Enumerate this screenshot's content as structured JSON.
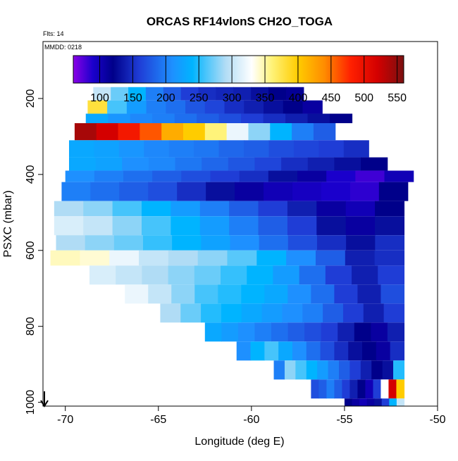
{
  "chart_data": {
    "type": "heatmap",
    "title": "ORCAS RF14vlonS CH2O_TOGA",
    "note_top": "Flts: 14",
    "note_panel": "MMDD: 0218",
    "xlabel": "Longitude (deg E)",
    "ylabel": "PSXC (mbar)",
    "xlim": [
      -71.2,
      -50
    ],
    "ylim": [
      1010,
      50
    ],
    "x_ticks": [
      -70,
      -65,
      -60,
      -55,
      -50
    ],
    "y_ticks": [
      200,
      400,
      600,
      800,
      1000
    ],
    "colorbar": {
      "range": [
        60,
        560
      ],
      "ticks": [
        100,
        150,
        200,
        250,
        300,
        350,
        400,
        450,
        500,
        550
      ],
      "stops": [
        {
          "v": 60,
          "c": "#8a00e6"
        },
        {
          "v": 90,
          "c": "#1a00cc"
        },
        {
          "v": 120,
          "c": "#00008a"
        },
        {
          "v": 160,
          "c": "#1f3dd6"
        },
        {
          "v": 210,
          "c": "#1e90ff"
        },
        {
          "v": 240,
          "c": "#00b4ff"
        },
        {
          "v": 290,
          "c": "#b0dcf5"
        },
        {
          "v": 330,
          "c": "#ffffff"
        },
        {
          "v": 360,
          "c": "#fff37a"
        },
        {
          "v": 400,
          "c": "#ffcc00"
        },
        {
          "v": 440,
          "c": "#ff8c00"
        },
        {
          "v": 480,
          "c": "#ff2000"
        },
        {
          "v": 520,
          "c": "#d40000"
        },
        {
          "v": 560,
          "c": "#7a1010"
        }
      ]
    },
    "bands": [
      {
        "p0": 170,
        "p1": 205,
        "x0": -68.5,
        "x1": -57.2,
        "vals": [
          300,
          270,
          240,
          200,
          180,
          160,
          150,
          145,
          140,
          130,
          120,
          115
        ]
      },
      {
        "p0": 205,
        "p1": 240,
        "x0": -68.8,
        "x1": -56.2,
        "vals": [
          380,
          260,
          220,
          200,
          190,
          175,
          165,
          150,
          140,
          130,
          120,
          110
        ]
      },
      {
        "p0": 240,
        "p1": 265,
        "x0": -68.9,
        "x1": -54.6,
        "vals": [
          230,
          215,
          205,
          200,
          190,
          180,
          170,
          160,
          150,
          140,
          130,
          120
        ]
      },
      {
        "p0": 265,
        "p1": 310,
        "x0": -69.5,
        "x1": -55.5,
        "vals": [
          540,
          520,
          490,
          460,
          420,
          400,
          360,
          320,
          280,
          240,
          200,
          180
        ]
      },
      {
        "p0": 310,
        "p1": 355,
        "x0": -69.8,
        "x1": -53.7,
        "vals": [
          230,
          225,
          215,
          205,
          200,
          195,
          185,
          180,
          170,
          165,
          160,
          150
        ]
      },
      {
        "p0": 355,
        "p1": 390,
        "x0": -69.8,
        "x1": -52.7,
        "vals": [
          230,
          225,
          210,
          205,
          195,
          185,
          175,
          165,
          150,
          140,
          130,
          120
        ]
      },
      {
        "p0": 390,
        "p1": 420,
        "x0": -70.0,
        "x1": -51.3,
        "vals": [
          210,
          200,
          190,
          180,
          170,
          160,
          150,
          130,
          110,
          90,
          80,
          100
        ]
      },
      {
        "p0": 420,
        "p1": 470,
        "x0": -70.2,
        "x1": -51.6,
        "vals": [
          200,
          190,
          180,
          170,
          150,
          130,
          110,
          100,
          95,
          90,
          85,
          120
        ]
      },
      {
        "p0": 470,
        "p1": 510,
        "x0": -70.6,
        "x1": -51.8,
        "vals": [
          290,
          280,
          260,
          240,
          220,
          200,
          180,
          160,
          140,
          110,
          100,
          120
        ]
      },
      {
        "p0": 510,
        "p1": 560,
        "x0": -70.6,
        "x1": -51.8,
        "vals": [
          310,
          300,
          280,
          260,
          240,
          220,
          200,
          180,
          160,
          130,
          110,
          130
        ]
      },
      {
        "p0": 560,
        "p1": 600,
        "x0": -70.5,
        "x1": -51.8,
        "vals": [
          290,
          280,
          270,
          255,
          240,
          225,
          210,
          190,
          170,
          150,
          130,
          150
        ]
      },
      {
        "p0": 600,
        "p1": 640,
        "x0": -70.8,
        "x1": -51.8,
        "vals": [
          345,
          340,
          320,
          300,
          290,
          280,
          265,
          240,
          210,
          180,
          140,
          150
        ]
      },
      {
        "p0": 640,
        "p1": 690,
        "x0": -68.7,
        "x1": -51.8,
        "vals": [
          310,
          300,
          290,
          280,
          270,
          255,
          240,
          220,
          190,
          160,
          140,
          160
        ]
      },
      {
        "p0": 690,
        "p1": 740,
        "x0": -66.8,
        "x1": -51.8,
        "vals": [
          320,
          300,
          280,
          260,
          250,
          240,
          230,
          210,
          190,
          160,
          140,
          170
        ]
      },
      {
        "p0": 740,
        "p1": 790,
        "x0": -64.9,
        "x1": -51.8,
        "vals": [
          290,
          270,
          250,
          240,
          230,
          220,
          210,
          200,
          180,
          160,
          140,
          160
        ]
      },
      {
        "p0": 790,
        "p1": 840,
        "x0": -62.5,
        "x1": -51.8,
        "vals": [
          230,
          220,
          210,
          200,
          190,
          180,
          170,
          160,
          140,
          120,
          110,
          140
        ]
      },
      {
        "p0": 840,
        "p1": 890,
        "x0": -60.8,
        "x1": -51.8,
        "vals": [
          210,
          240,
          260,
          230,
          210,
          190,
          170,
          150,
          130,
          120,
          110,
          150
        ]
      },
      {
        "p0": 890,
        "p1": 940,
        "x0": -58.8,
        "x1": -51.8,
        "vals": [
          200,
          280,
          260,
          240,
          220,
          200,
          180,
          160,
          140,
          120,
          130,
          250
        ]
      },
      {
        "p0": 940,
        "p1": 990,
        "x0": -56.8,
        "x1": -51.8,
        "vals": [
          170,
          180,
          200,
          180,
          160,
          140,
          120,
          100,
          160,
          330,
          520,
          400
        ]
      },
      {
        "p0": 990,
        "p1": 1010,
        "x0": -55.0,
        "x1": -51.8,
        "vals": [
          120,
          110,
          100,
          110,
          130,
          160,
          240,
          300
        ]
      }
    ]
  }
}
